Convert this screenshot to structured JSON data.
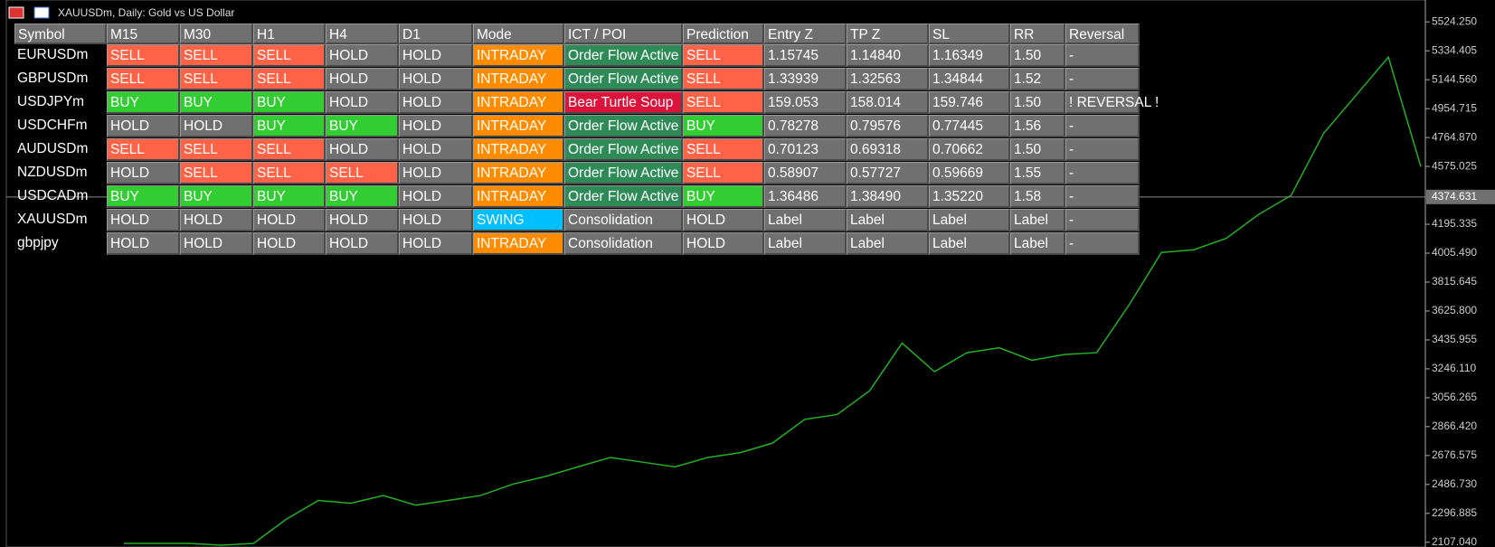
{
  "window": {
    "title": "XAUUSDm, Daily:  Gold vs US Dollar"
  },
  "table": {
    "headers": [
      "Symbol",
      "M15",
      "M30",
      "H1",
      "H4",
      "D1",
      "Mode",
      "ICT / POI",
      "Prediction",
      "Entry Z",
      "TP Z",
      "SL",
      "RR",
      "Reversal"
    ],
    "rows": [
      [
        "EURUSDm",
        "SELL",
        "SELL",
        "SELL",
        "HOLD",
        "HOLD",
        "INTRADAY",
        "Order Flow Active",
        "SELL",
        "1.15745",
        "1.14840",
        "1.16349",
        "1.50",
        "-"
      ],
      [
        "GBPUSDm",
        "SELL",
        "SELL",
        "SELL",
        "HOLD",
        "HOLD",
        "INTRADAY",
        "Order Flow Active",
        "SELL",
        "1.33939",
        "1.32563",
        "1.34844",
        "1.52",
        "-"
      ],
      [
        "USDJPYm",
        "BUY",
        "BUY",
        "BUY",
        "HOLD",
        "HOLD",
        "INTRADAY",
        "Bear Turtle Soup",
        "SELL",
        "159.053",
        "158.014",
        "159.746",
        "1.50",
        "! REVERSAL !"
      ],
      [
        "USDCHFm",
        "HOLD",
        "HOLD",
        "BUY",
        "BUY",
        "HOLD",
        "INTRADAY",
        "Order Flow Active",
        "BUY",
        "0.78278",
        "0.79576",
        "0.77445",
        "1.56",
        "-"
      ],
      [
        "AUDUSDm",
        "SELL",
        "SELL",
        "SELL",
        "HOLD",
        "HOLD",
        "INTRADAY",
        "Order Flow Active",
        "SELL",
        "0.70123",
        "0.69318",
        "0.70662",
        "1.50",
        "-"
      ],
      [
        "NZDUSDm",
        "HOLD",
        "SELL",
        "SELL",
        "SELL",
        "HOLD",
        "INTRADAY",
        "Order Flow Active",
        "SELL",
        "0.58907",
        "0.57727",
        "0.59669",
        "1.55",
        "-"
      ],
      [
        "USDCADm",
        "BUY",
        "BUY",
        "BUY",
        "BUY",
        "HOLD",
        "INTRADAY",
        "Order Flow Active",
        "BUY",
        "1.36486",
        "1.38490",
        "1.35220",
        "1.58",
        "-"
      ],
      [
        "XAUUSDm",
        "HOLD",
        "HOLD",
        "HOLD",
        "HOLD",
        "HOLD",
        "SWING",
        "Consolidation",
        "HOLD",
        "Label",
        "Label",
        "Label",
        "Label",
        "-"
      ],
      [
        "gbpjpy",
        "HOLD",
        "HOLD",
        "HOLD",
        "HOLD",
        "HOLD",
        "INTRADAY",
        "Consolidation",
        "HOLD",
        "Label",
        "Label",
        "Label",
        "Label",
        "-"
      ]
    ],
    "cell_colors": {
      "SELL": "#ff6347",
      "BUY": "#32cd32",
      "INTRADAY": "#ff8c00",
      "SWING": "#00bfff",
      "Order Flow Active": "#2e8b57",
      "Bear Turtle Soup": "#dc143c"
    },
    "default_color": "#707070"
  },
  "chart_data": {
    "type": "line",
    "color": "#22b022",
    "values": [
      2100,
      2100,
      2100,
      2088,
      2100,
      2257,
      2382,
      2363,
      2414,
      2351,
      2382,
      2414,
      2489,
      2539,
      2602,
      2664,
      2633,
      2602,
      2664,
      2695,
      2758,
      2914,
      2946,
      3102,
      3415,
      3227,
      3352,
      3384,
      3302,
      3340,
      3352,
      3665,
      4010,
      4028,
      4103,
      4260,
      4385,
      4792,
      5042,
      5293,
      4573
    ],
    "ylim": [
      2076,
      5668
    ],
    "yticks": [
      {
        "value": 5524.25,
        "label": "5524.250"
      },
      {
        "value": 5334.405,
        "label": "5334.405"
      },
      {
        "value": 5144.56,
        "label": "5144.560"
      },
      {
        "value": 4954.715,
        "label": "4954.715"
      },
      {
        "value": 4764.87,
        "label": "4764.870"
      },
      {
        "value": 4575.025,
        "label": "4575.025"
      },
      {
        "value": 4195.335,
        "label": "4195.335"
      },
      {
        "value": 4005.49,
        "label": "4005.490"
      },
      {
        "value": 3815.645,
        "label": "3815.645"
      },
      {
        "value": 3625.8,
        "label": "3625.800"
      },
      {
        "value": 3435.955,
        "label": "3435.955"
      },
      {
        "value": 3246.11,
        "label": "3246.110"
      },
      {
        "value": 3056.265,
        "label": "3056.265"
      },
      {
        "value": 2866.42,
        "label": "2866.420"
      },
      {
        "value": 2676.575,
        "label": "2676.575"
      },
      {
        "value": 2486.73,
        "label": "2486.730"
      },
      {
        "value": 2296.885,
        "label": "2296.885"
      },
      {
        "value": 2107.04,
        "label": "2107.040"
      }
    ],
    "current_price": {
      "value": 4374.631,
      "label": "4374.631"
    }
  }
}
